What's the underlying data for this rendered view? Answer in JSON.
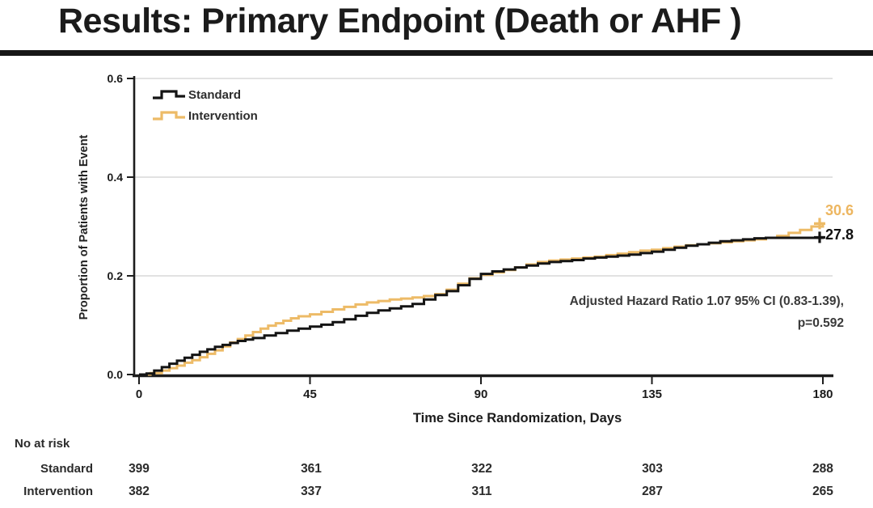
{
  "slide": {
    "title": "Results: Primary Endpoint (Death or AHF )"
  },
  "axes": {
    "y_title": "Proportion of Patients with Event",
    "x_title": "Time Since Randomization, Days"
  },
  "legend": {
    "standard_label": "Standard",
    "intervention_label": "Intervention"
  },
  "annotation": {
    "line1": "Adjusted Hazard Ratio 1.07 95% CI (0.83-1.39),",
    "line2": "p=0.592"
  },
  "colors": {
    "standard": "#141414",
    "intervention": "#edbb67",
    "gridline": "#d9d9d9",
    "axis": "#1d1d1d"
  },
  "chart_data": {
    "type": "line",
    "subtype": "step",
    "title": "",
    "xlabel": "Time Since Randomization, Days",
    "ylabel": "Proportion of Patients with Event",
    "xlim": [
      0,
      180
    ],
    "ylim": [
      0,
      0.6
    ],
    "xticks": [
      0,
      45,
      90,
      135,
      180
    ],
    "yticks": [
      0.0,
      0.2,
      0.4,
      0.6
    ],
    "grid": "horizontal light-gray lines at 0.2, 0.4, 0.6",
    "legend_position": "top-left inside plot",
    "annotation": "Adjusted Hazard Ratio 1.07 95% CI (0.83-1.39), p=0.592",
    "series": [
      {
        "name": "Intervention",
        "color": "#edbb67",
        "end_label": "30.6",
        "end_value": 0.306,
        "points": [
          [
            0,
            0
          ],
          [
            3,
            0.003
          ],
          [
            6,
            0.008
          ],
          [
            8,
            0.013
          ],
          [
            10,
            0.018
          ],
          [
            12,
            0.024
          ],
          [
            14,
            0.029
          ],
          [
            16,
            0.035
          ],
          [
            18,
            0.042
          ],
          [
            20,
            0.049
          ],
          [
            22,
            0.057
          ],
          [
            24,
            0.065
          ],
          [
            26,
            0.072
          ],
          [
            28,
            0.079
          ],
          [
            30,
            0.086
          ],
          [
            32,
            0.093
          ],
          [
            34,
            0.099
          ],
          [
            36,
            0.104
          ],
          [
            38,
            0.109
          ],
          [
            40,
            0.114
          ],
          [
            42,
            0.118
          ],
          [
            45,
            0.122
          ],
          [
            48,
            0.127
          ],
          [
            51,
            0.132
          ],
          [
            54,
            0.137
          ],
          [
            57,
            0.142
          ],
          [
            60,
            0.146
          ],
          [
            63,
            0.149
          ],
          [
            66,
            0.152
          ],
          [
            69,
            0.154
          ],
          [
            72,
            0.156
          ],
          [
            75,
            0.159
          ],
          [
            78,
            0.163
          ],
          [
            81,
            0.172
          ],
          [
            84,
            0.184
          ],
          [
            87,
            0.195
          ],
          [
            90,
            0.202
          ],
          [
            93,
            0.207
          ],
          [
            96,
            0.212
          ],
          [
            99,
            0.217
          ],
          [
            102,
            0.223
          ],
          [
            105,
            0.228
          ],
          [
            108,
            0.231
          ],
          [
            111,
            0.233
          ],
          [
            114,
            0.235
          ],
          [
            117,
            0.237
          ],
          [
            120,
            0.239
          ],
          [
            123,
            0.242
          ],
          [
            126,
            0.245
          ],
          [
            129,
            0.248
          ],
          [
            132,
            0.251
          ],
          [
            135,
            0.253
          ],
          [
            138,
            0.256
          ],
          [
            141,
            0.259
          ],
          [
            144,
            0.262
          ],
          [
            147,
            0.264
          ],
          [
            150,
            0.266
          ],
          [
            153,
            0.268
          ],
          [
            156,
            0.27
          ],
          [
            159,
            0.272
          ],
          [
            162,
            0.274
          ],
          [
            165,
            0.277
          ],
          [
            168,
            0.281
          ],
          [
            171,
            0.287
          ],
          [
            174,
            0.293
          ],
          [
            177,
            0.3
          ],
          [
            180,
            0.306
          ]
        ]
      },
      {
        "name": "Standard",
        "color": "#141414",
        "end_label": "27.8",
        "end_value": 0.278,
        "points": [
          [
            0,
            0
          ],
          [
            2,
            0.002
          ],
          [
            4,
            0.008
          ],
          [
            6,
            0.015
          ],
          [
            8,
            0.022
          ],
          [
            10,
            0.028
          ],
          [
            12,
            0.034
          ],
          [
            14,
            0.04
          ],
          [
            16,
            0.046
          ],
          [
            18,
            0.051
          ],
          [
            20,
            0.056
          ],
          [
            22,
            0.06
          ],
          [
            24,
            0.064
          ],
          [
            26,
            0.068
          ],
          [
            28,
            0.071
          ],
          [
            30,
            0.074
          ],
          [
            33,
            0.079
          ],
          [
            36,
            0.084
          ],
          [
            39,
            0.089
          ],
          [
            42,
            0.093
          ],
          [
            45,
            0.097
          ],
          [
            48,
            0.101
          ],
          [
            51,
            0.106
          ],
          [
            54,
            0.112
          ],
          [
            57,
            0.119
          ],
          [
            60,
            0.125
          ],
          [
            63,
            0.13
          ],
          [
            66,
            0.134
          ],
          [
            69,
            0.138
          ],
          [
            72,
            0.143
          ],
          [
            75,
            0.152
          ],
          [
            78,
            0.161
          ],
          [
            81,
            0.169
          ],
          [
            84,
            0.181
          ],
          [
            87,
            0.194
          ],
          [
            90,
            0.204
          ],
          [
            93,
            0.209
          ],
          [
            96,
            0.213
          ],
          [
            99,
            0.217
          ],
          [
            102,
            0.221
          ],
          [
            105,
            0.225
          ],
          [
            108,
            0.228
          ],
          [
            111,
            0.23
          ],
          [
            114,
            0.232
          ],
          [
            117,
            0.235
          ],
          [
            120,
            0.237
          ],
          [
            123,
            0.239
          ],
          [
            126,
            0.241
          ],
          [
            129,
            0.243
          ],
          [
            132,
            0.246
          ],
          [
            135,
            0.249
          ],
          [
            138,
            0.253
          ],
          [
            141,
            0.257
          ],
          [
            144,
            0.261
          ],
          [
            147,
            0.264
          ],
          [
            150,
            0.267
          ],
          [
            153,
            0.27
          ],
          [
            156,
            0.272
          ],
          [
            159,
            0.274
          ],
          [
            162,
            0.276
          ],
          [
            165,
            0.277
          ],
          [
            180,
            0.278
          ]
        ]
      }
    ],
    "risk_table": {
      "header": "No at risk",
      "days": [
        0,
        45,
        90,
        135,
        180
      ],
      "rows": [
        {
          "name": "Standard",
          "counts": [
            399,
            361,
            322,
            303,
            288
          ]
        },
        {
          "name": "Intervention",
          "counts": [
            382,
            337,
            311,
            287,
            265
          ]
        }
      ]
    }
  }
}
